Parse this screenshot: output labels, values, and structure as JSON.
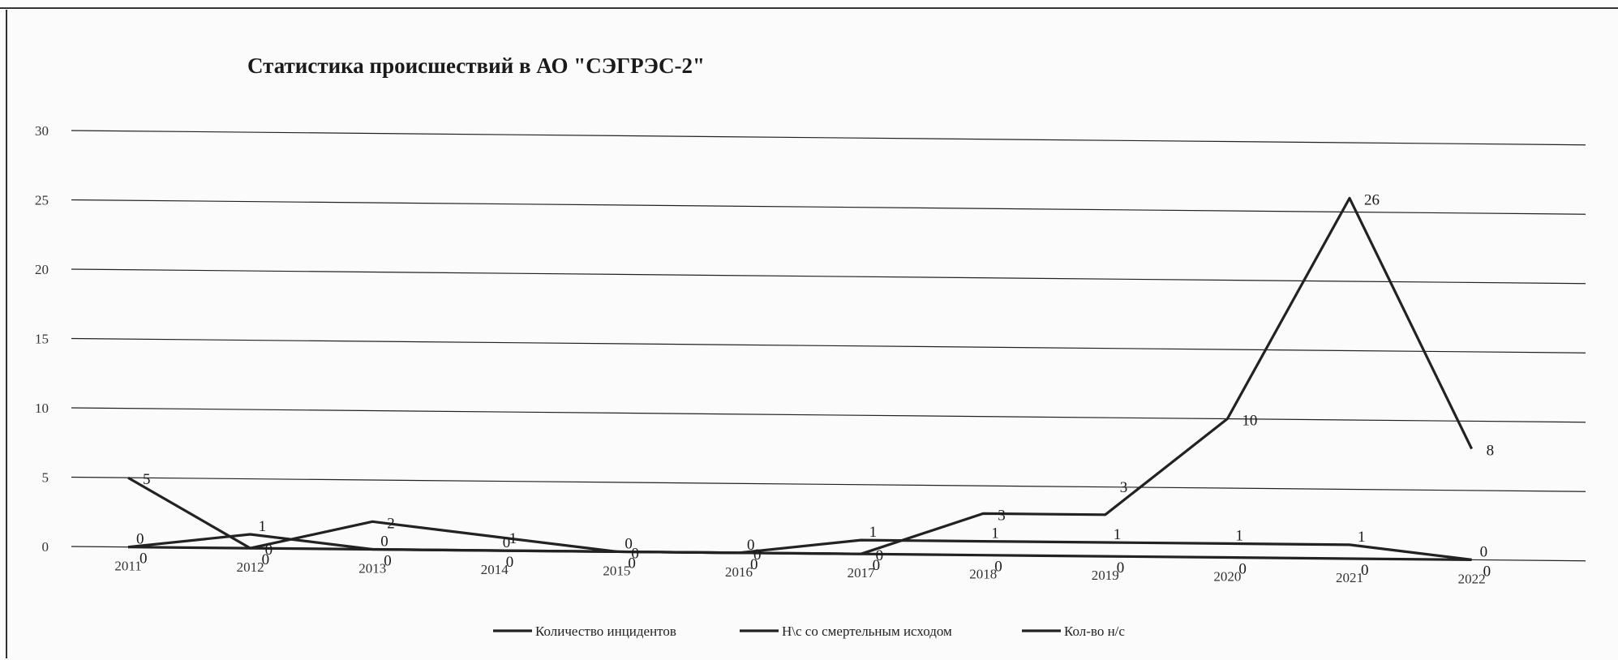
{
  "chart_data": {
    "type": "line",
    "title": "Статистика происшествий в АО \"СЭГРЭС-2\"",
    "xlabel": "",
    "ylabel": "",
    "categories": [
      "2011",
      "2012",
      "2013",
      "2014",
      "2015",
      "2016",
      "2017",
      "2018",
      "2019",
      "2020",
      "2021",
      "2022"
    ],
    "yticks": [
      "0",
      "5",
      "10",
      "15",
      "20",
      "25",
      "30"
    ],
    "ylim": [
      0,
      30
    ],
    "grid": true,
    "legend_position": "bottom",
    "series": [
      {
        "name": "Количество инцидентов",
        "values": [
          0,
          1,
          0,
          0,
          0,
          0,
          1,
          1,
          1,
          1,
          1,
          0
        ],
        "color": "#222222"
      },
      {
        "name": "Н\\с со смертельным исходом",
        "values": [
          0,
          0,
          0,
          0,
          0,
          0,
          0,
          0,
          0,
          0,
          0,
          0
        ],
        "color": "#222222"
      },
      {
        "name": "Кол-во н/с",
        "values": [
          5,
          0,
          2,
          1,
          0,
          0,
          0,
          3,
          3,
          10,
          26,
          8
        ],
        "color": "#222222"
      }
    ]
  }
}
